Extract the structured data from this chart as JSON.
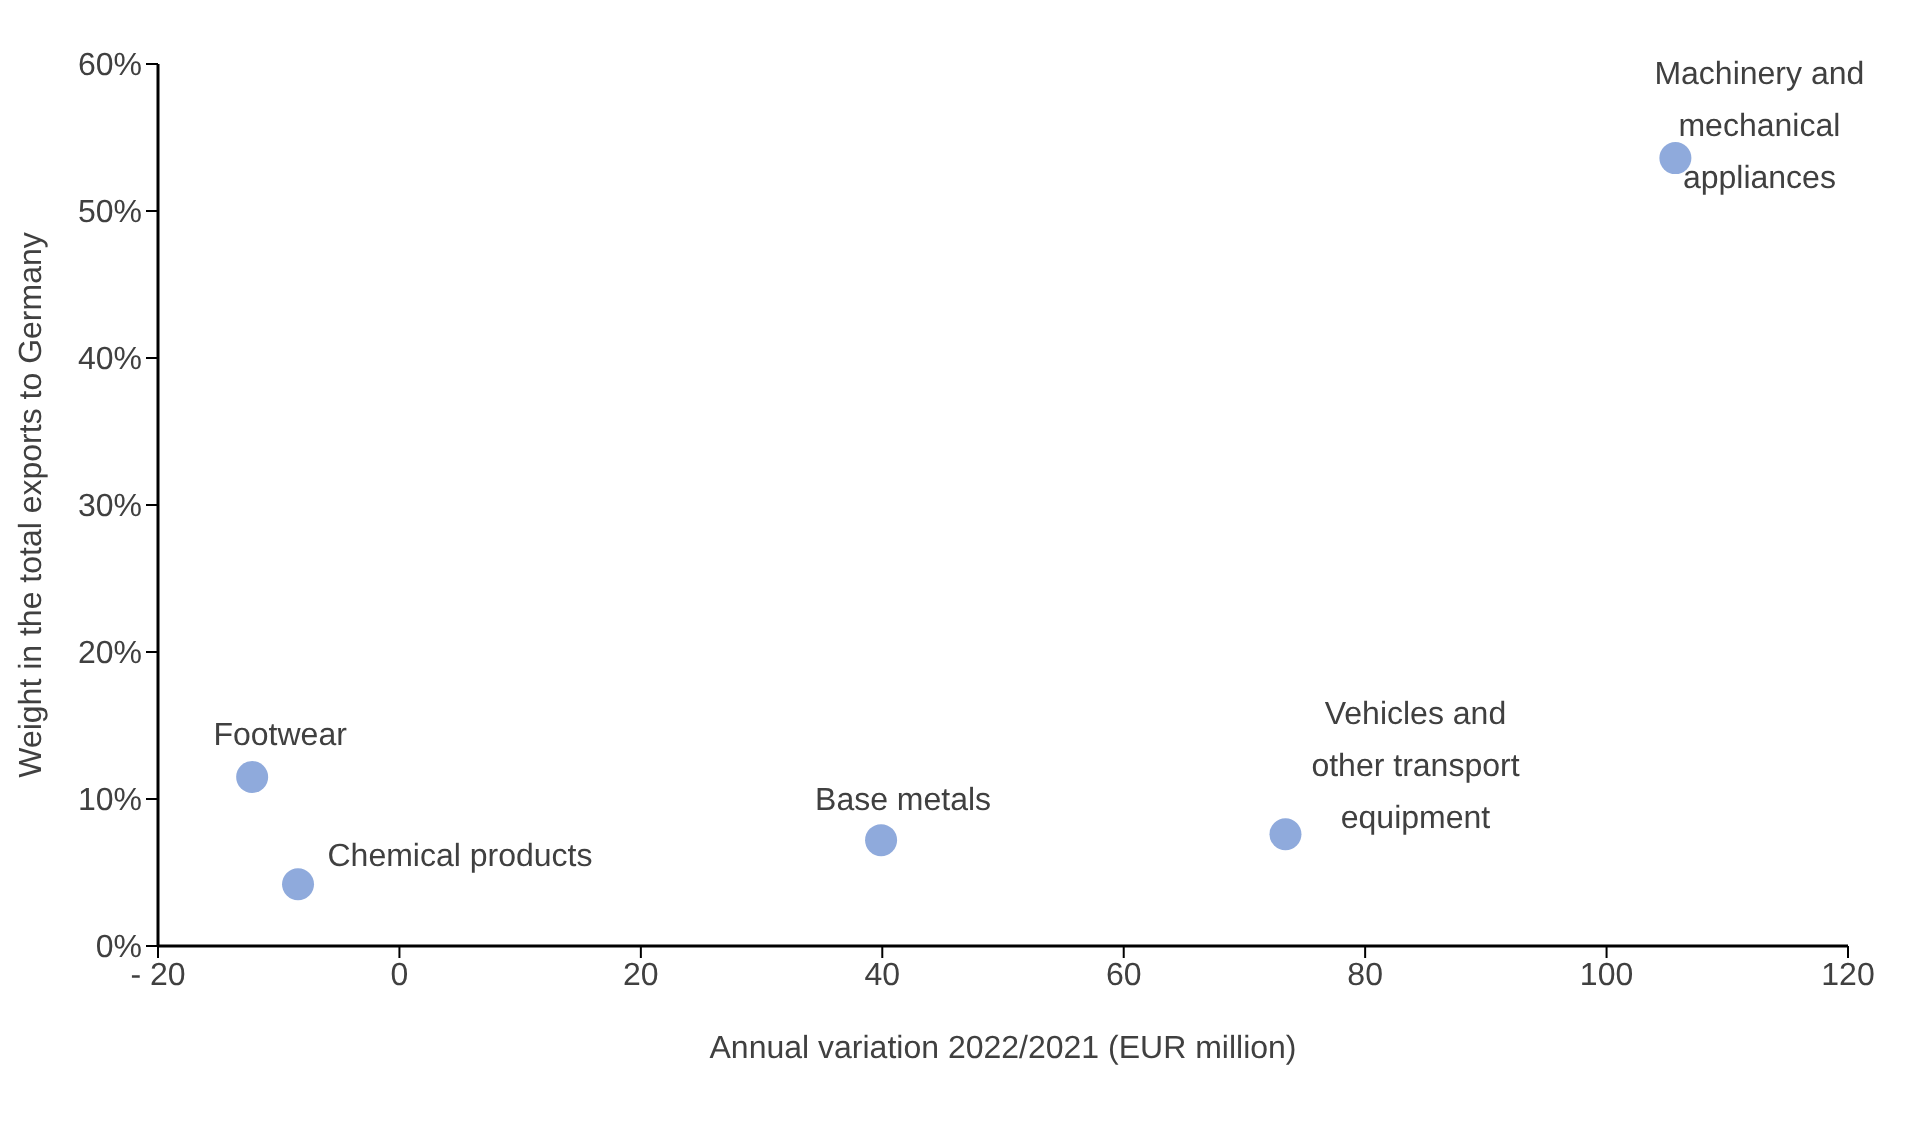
{
  "chart_data": {
    "type": "scatter",
    "xlabel": "Annual variation 2022/2021 (EUR million)",
    "ylabel": "Weight in the total exports to Germany",
    "x": [
      105.7,
      -12.2,
      -8.4,
      39.9,
      73.4
    ],
    "series": [
      {
        "color": "#8faadc",
        "values": [
          53.6,
          11.5,
          4.2,
          7.2,
          7.6
        ]
      }
    ],
    "xlim": [
      -20,
      120
    ],
    "xticks": [
      {
        "value": -20,
        "label": "- 20"
      },
      0,
      20,
      40,
      60,
      80,
      100,
      120
    ],
    "ylim": [
      0,
      60
    ],
    "yticks": [
      {
        "value": 0,
        "label": "0%"
      },
      {
        "value": 10,
        "label": "10%"
      },
      {
        "value": 20,
        "label": "20%"
      },
      {
        "value": 30,
        "label": "30%"
      },
      {
        "value": 40,
        "label": "40%"
      },
      {
        "value": 50,
        "label": "50%"
      },
      {
        "value": 60,
        "label": "60%"
      }
    ],
    "marker": "circle",
    "grid": false,
    "annotations": [
      {
        "text": "Machinery and mechanical appliances",
        "x": 105.7,
        "y": 53.6
      },
      {
        "text": "Footwear",
        "x": -12.2,
        "y": 11.5
      },
      {
        "text": "Chemical products",
        "x": -8.4,
        "y": 4.2
      },
      {
        "text": "Base metals",
        "x": 39.9,
        "y": 7.2
      },
      {
        "text": "Vehicles and other transport equipment",
        "x": 73.4,
        "y": 7.6
      }
    ]
  }
}
